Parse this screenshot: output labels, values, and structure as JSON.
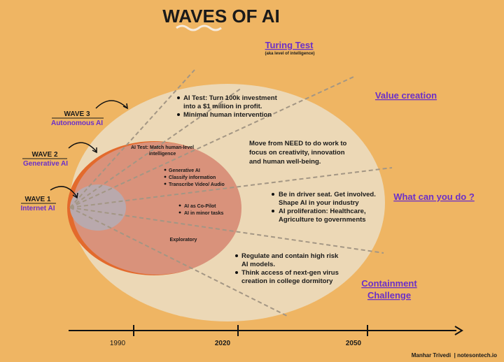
{
  "title": "WAVES OF AI",
  "headings": {
    "turing_test": "Turing Test",
    "turing_note": "(aka level of intelligence)",
    "value_creation": "Value creation",
    "what_can_you_do": "What can you do ?",
    "containment_challenge": [
      "Containment",
      "Challenge"
    ]
  },
  "waves": [
    {
      "label": "WAVE 3",
      "name": "Autonomous AI"
    },
    {
      "label": "WAVE 2",
      "name": "Generative AI"
    },
    {
      "label": "WAVE 1",
      "name": "Internet AI"
    }
  ],
  "wave3": {
    "bullets": [
      [
        "AI Test: Turn 100k investment",
        "into a $1 million in profit."
      ],
      [
        "Minimal human intervention"
      ]
    ]
  },
  "wave2": {
    "test": [
      "AI Test: Match human-level",
      "intelligence"
    ],
    "bullets": [
      "Generative AI",
      "Classify information",
      "Transcribe Video/ Audio"
    ]
  },
  "wave1": {
    "bullets": [
      "AI as Co-Pilot",
      "AI in minor tasks"
    ],
    "stage": "Exploratory"
  },
  "value_creation_text": [
    "Move from NEED to do work to",
    "focus on creativity, innovation",
    "and human well-being."
  ],
  "what_can_you_do_bullets": [
    [
      "Be in driver seat. Get involved.",
      "Shape AI in your industry"
    ],
    [
      "AI proliferation: Healthcare,",
      "Agriculture to governments"
    ]
  ],
  "containment_bullets": [
    [
      "Regulate and contain high risk",
      "AI models."
    ],
    [
      "Think access of next-gen virus",
      "creation in college dormitory"
    ]
  ],
  "timeline": [
    "1990",
    "2020",
    "2050"
  ],
  "footer": "Manhar Trivedi  | notesontech.io"
}
